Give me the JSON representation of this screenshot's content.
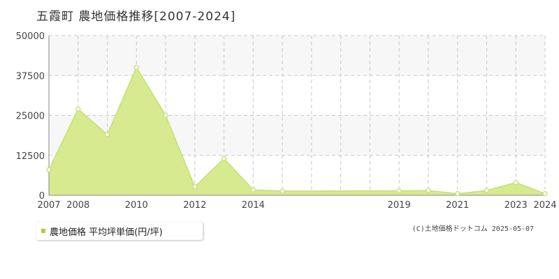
{
  "title": "五霞町 農地価格推移[2007-2024]",
  "legend_label": "農地価格 平均坪単価(円/坪)",
  "credit": "(C)土地価格ドットコム 2025-05-07",
  "colors": {
    "fill": "#d8ea90",
    "line": "#c4e070",
    "legend_swatch": "#a8d040",
    "band": "#f7f7f7",
    "grid": "#c8c8c8"
  },
  "chart_data": {
    "type": "area",
    "title": "五霞町 農地価格推移[2007-2024]",
    "xlabel": "",
    "ylabel": "",
    "ylim": [
      0,
      50000
    ],
    "yticks": [
      0,
      12500,
      25000,
      37500,
      50000
    ],
    "xlim": [
      2007,
      2024
    ],
    "xtick_labels": [
      "2007",
      "2008",
      "2010",
      "2012",
      "2014",
      "2019",
      "2021",
      "2023",
      "2024"
    ],
    "grid": true,
    "legend_position": "bottom-left",
    "series": [
      {
        "name": "農地価格 平均坪単価(円/坪)",
        "x": [
          2007,
          2008,
          2009,
          2010,
          2011,
          2012,
          2013,
          2014,
          2015,
          2019,
          2020,
          2021,
          2022,
          2023,
          2024
        ],
        "values": [
          8000,
          27000,
          19000,
          40000,
          25000,
          2700,
          11500,
          1700,
          1300,
          1400,
          1500,
          500,
          1500,
          4000,
          500
        ]
      }
    ]
  }
}
